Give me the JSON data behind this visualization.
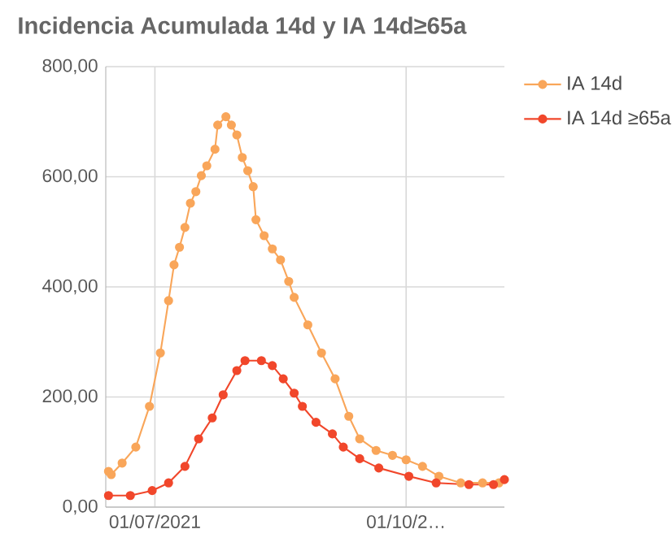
{
  "chart_data": {
    "type": "line",
    "title": "Incidencia Acumulada 14d y IA 14d≥65a",
    "xlim": [
      "2021-06-13",
      "2021-11-06"
    ],
    "xticks": [
      {
        "value": "2021-07-01",
        "label": "01/07/2021"
      },
      {
        "value": "2021-10-01",
        "label": "01/10/2…"
      }
    ],
    "ylim": [
      0,
      800
    ],
    "yticks": [
      {
        "value": 0,
        "label": "0,00"
      },
      {
        "value": 200,
        "label": "200,00"
      },
      {
        "value": 400,
        "label": "400,00"
      },
      {
        "value": 600,
        "label": "600,00"
      },
      {
        "value": 800,
        "label": "800,00"
      }
    ],
    "grid": true,
    "legend": "top right",
    "marker": "circle",
    "line_style": "solid",
    "series": [
      {
        "name": "IA 14d",
        "color": "#f9a65a",
        "x": [
          "2021-06-14",
          "2021-06-15",
          "2021-06-19",
          "2021-06-24",
          "2021-06-29",
          "2021-07-03",
          "2021-07-06",
          "2021-07-08",
          "2021-07-10",
          "2021-07-12",
          "2021-07-14",
          "2021-07-16",
          "2021-07-18",
          "2021-07-20",
          "2021-07-23",
          "2021-07-24",
          "2021-07-27",
          "2021-07-29",
          "2021-07-31",
          "2021-08-02",
          "2021-08-04",
          "2021-08-06",
          "2021-08-07",
          "2021-08-10",
          "2021-08-13",
          "2021-08-16",
          "2021-08-19",
          "2021-08-21",
          "2021-08-26",
          "2021-08-31",
          "2021-09-05",
          "2021-09-10",
          "2021-09-14",
          "2021-09-20",
          "2021-09-26",
          "2021-10-01",
          "2021-10-07",
          "2021-10-13",
          "2021-10-21",
          "2021-10-29",
          "2021-11-04"
        ],
        "values": [
          65,
          59,
          80,
          109,
          183,
          280,
          375,
          440,
          472,
          508,
          552,
          573,
          602,
          620,
          650,
          694,
          709,
          694,
          676,
          635,
          611,
          582,
          522,
          493,
          469,
          449,
          410,
          381,
          331,
          280,
          233,
          165,
          124,
          103,
          94,
          86,
          74,
          56,
          44,
          44,
          44
        ]
      },
      {
        "name": "IA 14d ≥65a",
        "color": "#f1472b",
        "x": [
          "2021-06-14",
          "2021-06-22",
          "2021-06-30",
          "2021-07-06",
          "2021-07-12",
          "2021-07-17",
          "2021-07-22",
          "2021-07-26",
          "2021-07-31",
          "2021-08-03",
          "2021-08-09",
          "2021-08-13",
          "2021-08-17",
          "2021-08-21",
          "2021-08-24",
          "2021-08-29",
          "2021-09-04",
          "2021-09-08",
          "2021-09-14",
          "2021-09-21",
          "2021-10-02",
          "2021-10-12",
          "2021-10-24",
          "2021-11-02",
          "2021-11-06"
        ],
        "values": [
          21,
          21,
          30,
          44,
          74,
          124,
          162,
          204,
          248,
          266,
          266,
          257,
          233,
          207,
          183,
          154,
          133,
          109,
          88,
          71,
          56,
          44,
          41,
          41,
          50
        ]
      }
    ]
  }
}
